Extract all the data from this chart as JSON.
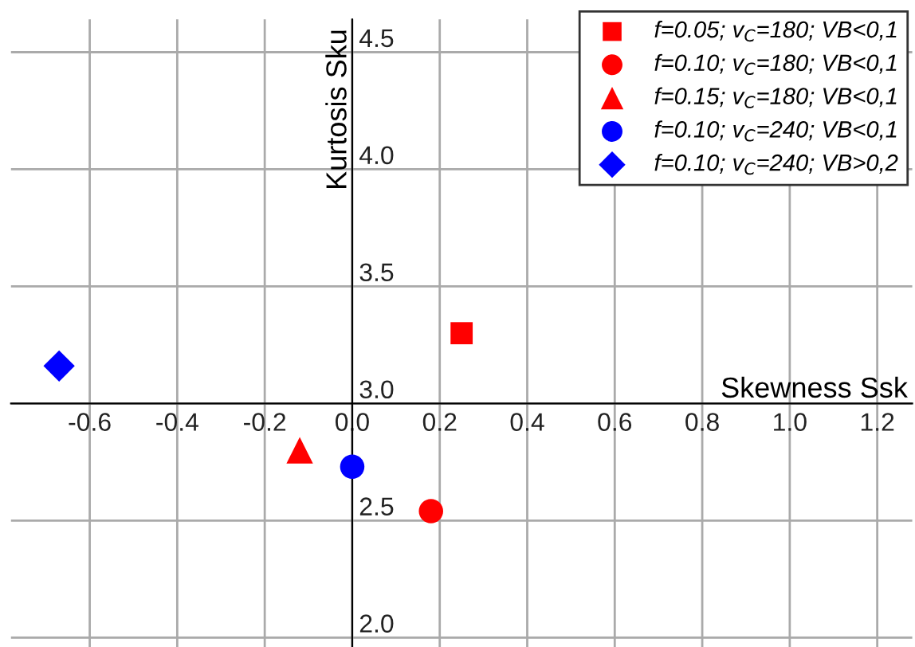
{
  "chart_data": {
    "type": "scatter",
    "xlabel": "Skewness Ssk",
    "ylabel": "Kurtosis Sku",
    "xlim": [
      -0.78,
      1.28
    ],
    "ylim": [
      1.96,
      4.64
    ],
    "xticks": [
      -0.6,
      -0.4,
      -0.2,
      {
        "value": 0,
        "label": "0.0"
      },
      0.2,
      0.4,
      0.6,
      0.8,
      {
        "value": 1,
        "label": "1.0"
      },
      1.2
    ],
    "yticks": [
      {
        "value": 2,
        "label": "2.0"
      },
      2.5,
      {
        "value": 3,
        "label": "3.0"
      },
      3.5,
      {
        "value": 4,
        "label": "4.0"
      },
      4.5
    ],
    "grid": true,
    "legend": "top right",
    "series": [
      {
        "name": "f=0.05; v$_{C}$=180; VB<0,1",
        "color": "#ff0000",
        "marker": "square",
        "x": [
          0.25
        ],
        "values": [
          3.3
        ]
      },
      {
        "name": "f=0.10; v$_{C}$=180; VB<0,1",
        "color": "#ff0000",
        "marker": "circle",
        "x": [
          0.18
        ],
        "values": [
          2.54
        ]
      },
      {
        "name": "f=0.15; v$_{C}$=180; VB<0,1",
        "color": "#ff0000",
        "marker": "triangle",
        "x": [
          -0.12
        ],
        "values": [
          2.8
        ]
      },
      {
        "name": "f=0.10; v$_{C}$=240; VB<0,1",
        "color": "#0000ff",
        "marker": "circle",
        "x": [
          0.0
        ],
        "values": [
          2.73
        ]
      },
      {
        "name": "f=0.10; v$_{C}$=240; VB>0,2",
        "color": "#0000ff",
        "marker": "diamond",
        "x": [
          -0.67
        ],
        "values": [
          3.16
        ]
      }
    ]
  }
}
